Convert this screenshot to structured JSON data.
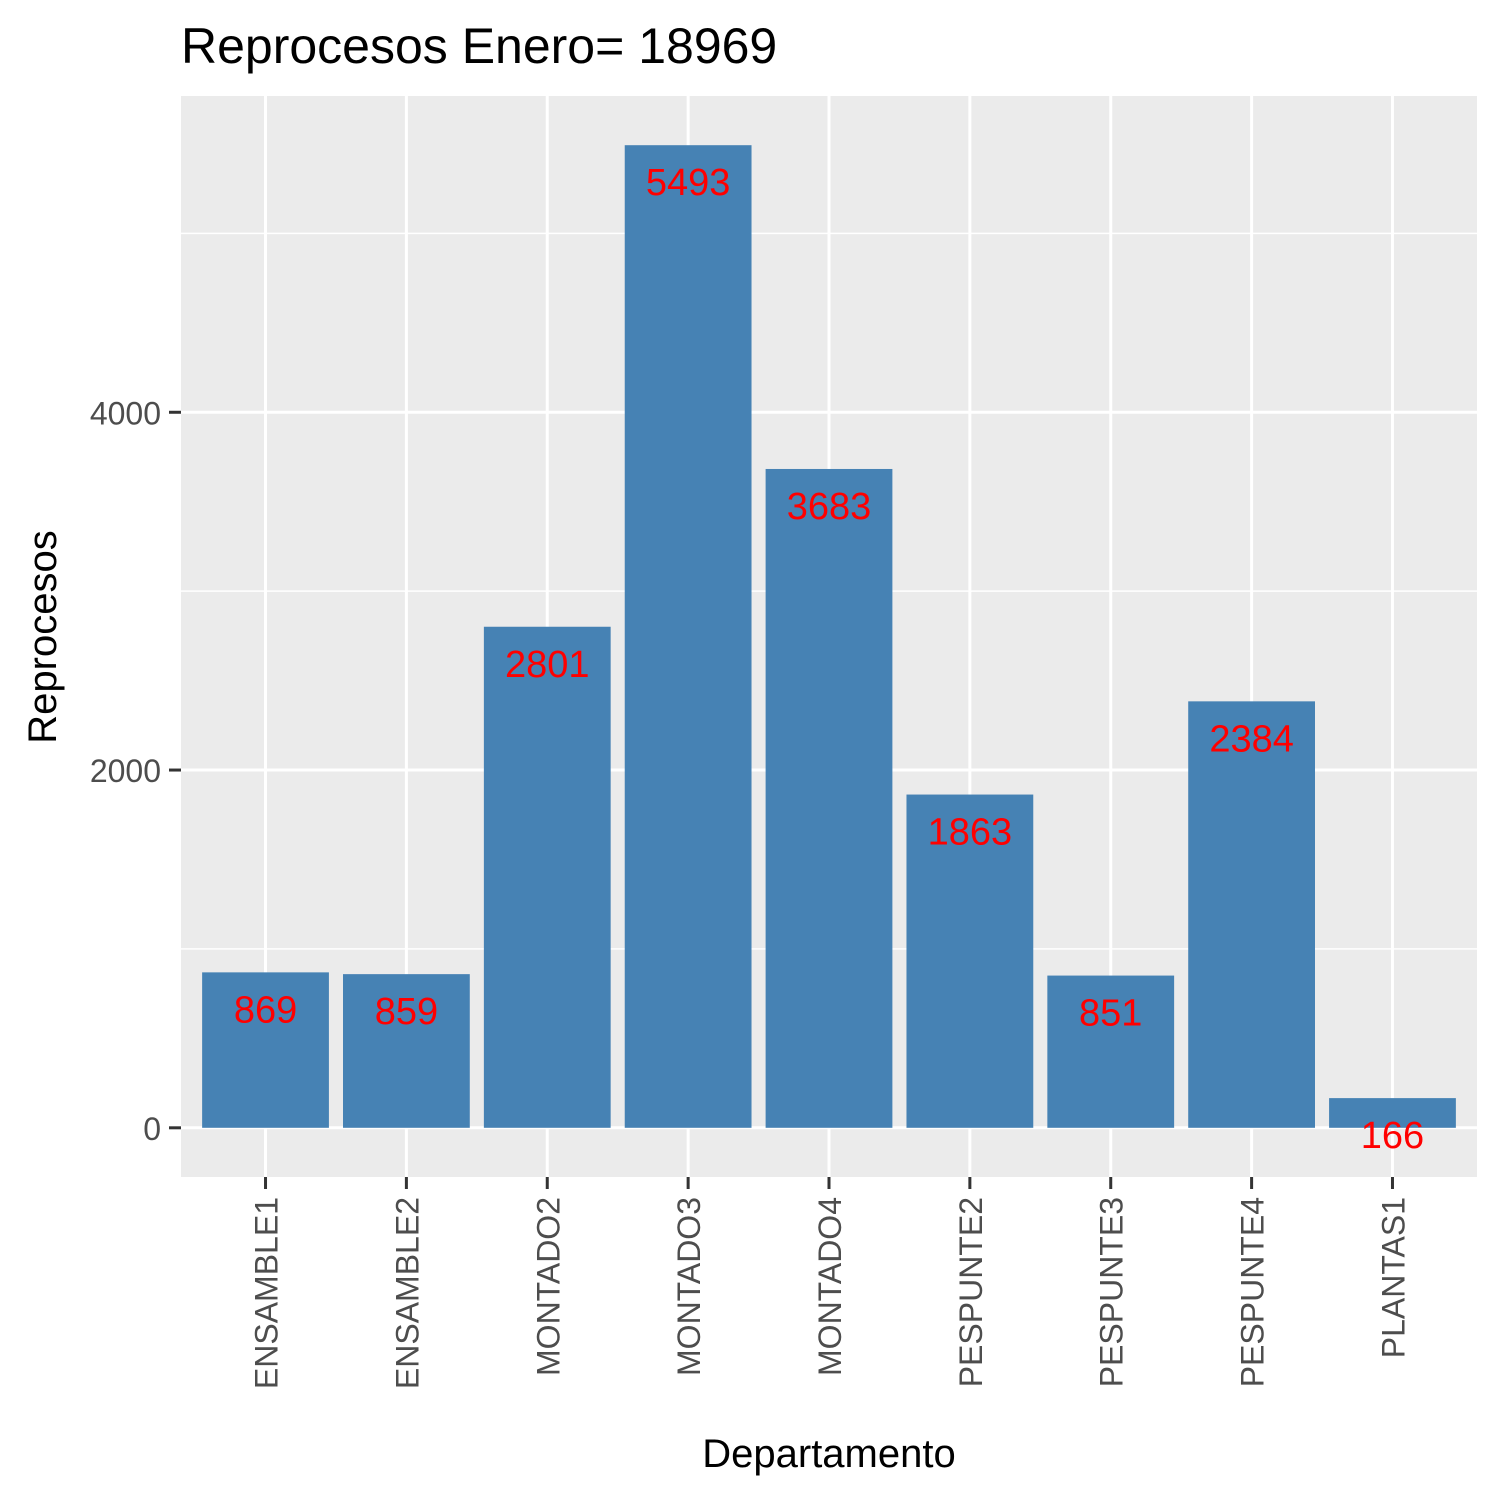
{
  "chart_data": {
    "type": "bar",
    "title": "Reprocesos Enero= 18969",
    "xlabel": "Departamento",
    "ylabel": "Reprocesos",
    "categories": [
      "ENSAMBLE1",
      "ENSAMBLE2",
      "MONTADO2",
      "MONTADO3",
      "MONTADO4",
      "PESPUNTE2",
      "PESPUNTE3",
      "PESPUNTE4",
      "PLANTAS1"
    ],
    "values": [
      869,
      859,
      2801,
      5493,
      3683,
      1863,
      851,
      2384,
      166
    ],
    "data_labels": [
      "869",
      "859",
      "2801",
      "5493",
      "3683",
      "1863",
      "851",
      "2384",
      "166"
    ],
    "yticks": [
      0,
      2000,
      4000
    ],
    "ytick_labels": [
      "0",
      "2000",
      "4000"
    ],
    "ylim": [
      -275,
      5768
    ],
    "grid": true,
    "colors": {
      "bar": "#4682b4",
      "label": "#ff0000",
      "panel": "#ebebeb",
      "grid": "#ffffff"
    }
  }
}
